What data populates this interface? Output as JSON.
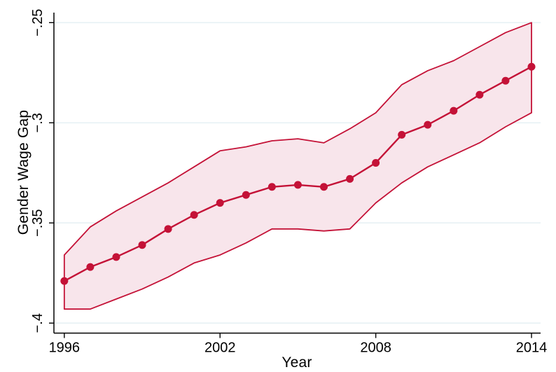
{
  "chart_data": {
    "type": "line",
    "title": "",
    "xlabel": "Year",
    "ylabel": "Gender Wage Gap",
    "x": [
      1996,
      1997,
      1998,
      1999,
      2000,
      2001,
      2002,
      2003,
      2004,
      2005,
      2006,
      2007,
      2008,
      2009,
      2010,
      2011,
      2012,
      2013,
      2014
    ],
    "series": [
      {
        "name": "gender-wage-gap",
        "values": [
          -0.379,
          -0.372,
          -0.367,
          -0.361,
          -0.353,
          -0.346,
          -0.34,
          -0.336,
          -0.332,
          -0.331,
          -0.332,
          -0.328,
          -0.32,
          -0.306,
          -0.301,
          -0.294,
          -0.286,
          -0.279,
          -0.272
        ]
      },
      {
        "name": "ci-upper",
        "values": [
          -0.366,
          -0.352,
          -0.344,
          -0.337,
          -0.33,
          -0.322,
          -0.314,
          -0.312,
          -0.309,
          -0.308,
          -0.31,
          -0.303,
          -0.295,
          -0.281,
          -0.274,
          -0.269,
          -0.262,
          -0.255,
          -0.25
        ]
      },
      {
        "name": "ci-lower",
        "values": [
          -0.393,
          -0.393,
          -0.388,
          -0.383,
          -0.377,
          -0.37,
          -0.366,
          -0.36,
          -0.353,
          -0.353,
          -0.354,
          -0.353,
          -0.34,
          -0.33,
          -0.322,
          -0.316,
          -0.31,
          -0.302,
          -0.295
        ]
      }
    ],
    "x_ticks": {
      "values": [
        1996,
        2002,
        2008,
        2014
      ],
      "labels": [
        "1996",
        "2002",
        "2008",
        "2014"
      ]
    },
    "y_ticks": {
      "values": [
        -0.25,
        -0.3,
        -0.35,
        -0.4
      ],
      "labels": [
        "−.25",
        "−.3",
        "−.35",
        "−.4"
      ]
    },
    "xlim": [
      1995.6,
      2014.35
    ],
    "ylim": [
      -0.405,
      -0.245
    ],
    "grid": "horizontal-only",
    "legend": "none",
    "colors": {
      "line": "#c41237",
      "marker": "#c41237",
      "band_fill": "#f8e5eb",
      "band_stroke": "#c41237",
      "grid": "#e7f1f4",
      "axis": "#000000",
      "text": "#000000"
    }
  }
}
